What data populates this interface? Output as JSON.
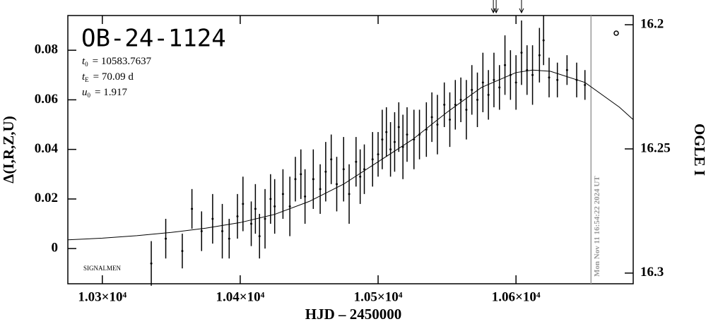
{
  "chart_data": {
    "type": "lightcurve",
    "title": "OB-24-1124",
    "params": [
      {
        "symbol": "t",
        "sub": "0",
        "text": "= 10583.7637"
      },
      {
        "symbol": "t",
        "sub": "E",
        "text": "= 70.09 d"
      },
      {
        "symbol": "u",
        "sub": "0",
        "text": "= 1.917"
      }
    ],
    "source_label": "SIGNALMEN",
    "timestamp": "Mon Nov 11 16:54:22 2024 UT",
    "x_label": "HJD – 2450000",
    "y_label": "Δ(I,R,Z,U)",
    "y2_label": "OGLE I",
    "xlim": [
      10275,
      10685
    ],
    "ylim": [
      -0.0142,
      0.094
    ],
    "y2lim": [
      16.3043,
      16.1963
    ],
    "xticks": [
      {
        "value": 10300,
        "label": "1.03×10⁴"
      },
      {
        "value": 10400,
        "label": "1.04×10⁴"
      },
      {
        "value": 10500,
        "label": "1.05×10⁴"
      },
      {
        "value": 10600,
        "label": "1.06×10⁴"
      }
    ],
    "yticks": [
      0,
      0.02,
      0.04,
      0.06,
      0.08
    ],
    "y2ticks": [
      16.2,
      16.25,
      16.3
    ],
    "now_x": 10654.4,
    "arrows_x": [
      10584.6,
      10604
    ],
    "color": "#000000",
    "now_color": "#999999",
    "points": {
      "x": [
        10335.5,
        10346,
        10358,
        10365,
        10372,
        10380,
        10387,
        10392,
        10398,
        10402,
        10408,
        10411,
        10414,
        10418,
        10422,
        10425,
        10431,
        10436,
        10440,
        10444,
        10447,
        10453,
        10458,
        10462,
        10466,
        10470,
        10475,
        10479,
        10484,
        10487,
        10490,
        10496,
        10500,
        10503,
        10506,
        10509,
        10512,
        10515,
        10518,
        10521,
        10526,
        10530,
        10535,
        10539,
        10543,
        10548,
        10552,
        10556,
        10560,
        10564,
        10568,
        10572,
        10576,
        10580,
        10584,
        10588,
        10592,
        10596,
        10600,
        10604,
        10608,
        10612,
        10617,
        10620,
        10624,
        10630,
        10637,
        10644,
        10650
      ],
      "values": [
        -0.006,
        0.004,
        -0.001,
        0.016,
        0.007,
        0.012,
        0.007,
        0.004,
        0.013,
        0.018,
        0.01,
        0.016,
        0.005,
        0.012,
        0.02,
        0.017,
        0.022,
        0.017,
        0.028,
        0.03,
        0.021,
        0.028,
        0.024,
        0.031,
        0.036,
        0.026,
        0.032,
        0.022,
        0.035,
        0.029,
        0.032,
        0.036,
        0.038,
        0.044,
        0.047,
        0.04,
        0.043,
        0.049,
        0.041,
        0.046,
        0.044,
        0.046,
        0.048,
        0.053,
        0.05,
        0.058,
        0.052,
        0.058,
        0.06,
        0.056,
        0.064,
        0.06,
        0.067,
        0.062,
        0.068,
        0.065,
        0.074,
        0.07,
        0.067,
        0.079,
        0.072,
        0.07,
        0.078,
        0.084,
        0.069,
        0.068,
        0.072,
        0.068,
        0.066
      ],
      "errors": [
        0.009,
        0.008,
        0.007,
        0.008,
        0.008,
        0.01,
        0.011,
        0.008,
        0.009,
        0.011,
        0.009,
        0.01,
        0.009,
        0.012,
        0.01,
        0.011,
        0.01,
        0.012,
        0.009,
        0.01,
        0.011,
        0.012,
        0.01,
        0.012,
        0.01,
        0.011,
        0.013,
        0.012,
        0.01,
        0.011,
        0.01,
        0.011,
        0.009,
        0.012,
        0.01,
        0.011,
        0.012,
        0.01,
        0.013,
        0.011,
        0.012,
        0.01,
        0.011,
        0.01,
        0.012,
        0.009,
        0.011,
        0.01,
        0.009,
        0.012,
        0.01,
        0.011,
        0.012,
        0.01,
        0.011,
        0.009,
        0.012,
        0.01,
        0.011,
        0.013,
        0.01,
        0.012,
        0.011,
        0.01,
        0.008,
        0.007,
        0.006,
        0.007,
        0.006
      ]
    },
    "model": {
      "x": [
        10275,
        10300,
        10325,
        10350,
        10375,
        10400,
        10425,
        10450,
        10475,
        10500,
        10525,
        10550,
        10575,
        10600,
        10612,
        10625,
        10650,
        10675,
        10685
      ],
      "values": [
        0.0035,
        0.0042,
        0.0052,
        0.0065,
        0.0082,
        0.0105,
        0.0138,
        0.019,
        0.026,
        0.035,
        0.044,
        0.055,
        0.065,
        0.071,
        0.072,
        0.0715,
        0.067,
        0.057,
        0.052
      ]
    }
  }
}
